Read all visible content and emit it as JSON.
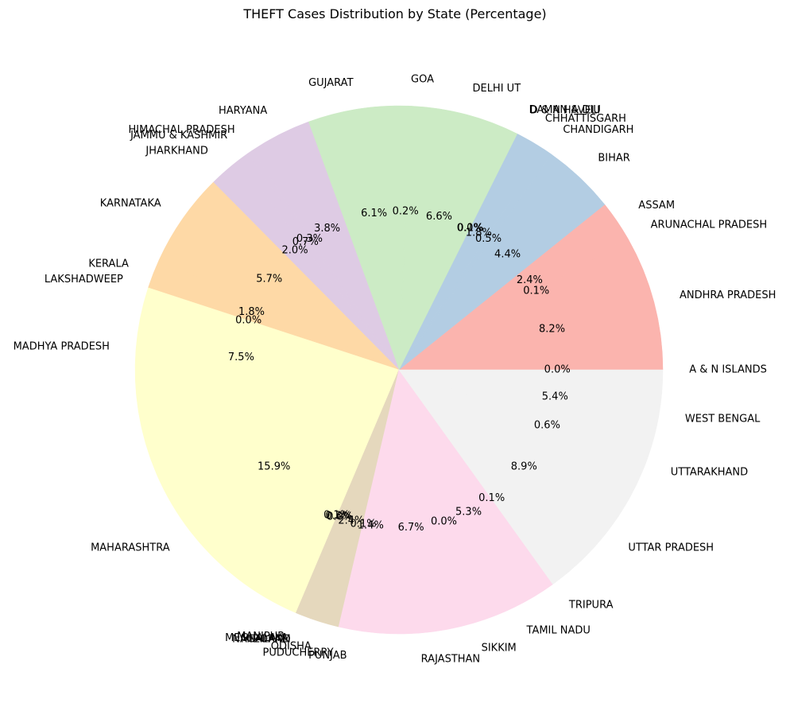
{
  "chart_data": {
    "type": "pie",
    "title": "THEFT Cases Distribution by State (Percentage)",
    "start_angle_deg": 0,
    "direction": "counterclockwise",
    "slices": [
      {
        "label": "A & N ISLANDS",
        "value": 0.0,
        "pct_text": "0.0%",
        "color": "#fbb4ae"
      },
      {
        "label": "ANDHRA PRADESH",
        "value": 8.2,
        "pct_text": "8.2%",
        "color": "#fbb4ae"
      },
      {
        "label": "ARUNACHAL PRADESH",
        "value": 0.1,
        "pct_text": "0.1%",
        "color": "#fbb4ae"
      },
      {
        "label": "ASSAM",
        "value": 2.4,
        "pct_text": "2.4%",
        "color": "#fbb4ae"
      },
      {
        "label": "BIHAR",
        "value": 4.4,
        "pct_text": "4.4%",
        "color": "#b3cde3"
      },
      {
        "label": "CHANDIGARH",
        "value": 0.5,
        "pct_text": "0.5%",
        "color": "#b3cde3"
      },
      {
        "label": "CHHATTISGARH",
        "value": 1.8,
        "pct_text": "1.8%",
        "color": "#b3cde3"
      },
      {
        "label": "D & N HAVELI",
        "value": 0.1,
        "pct_text": "0.1%",
        "color": "#b3cde3"
      },
      {
        "label": "DAMAN & DIU",
        "value": 0.0,
        "pct_text": "0.0%",
        "color": "#ccebc5"
      },
      {
        "label": "DELHI UT",
        "value": 6.6,
        "pct_text": "6.6%",
        "color": "#ccebc5"
      },
      {
        "label": "GOA",
        "value": 0.2,
        "pct_text": "0.2%",
        "color": "#ccebc5"
      },
      {
        "label": "GUJARAT",
        "value": 6.1,
        "pct_text": "6.1%",
        "color": "#ccebc5"
      },
      {
        "label": "HARYANA",
        "value": 3.8,
        "pct_text": "3.8%",
        "color": "#decbe4"
      },
      {
        "label": "HIMACHAL PRADESH",
        "value": 0.3,
        "pct_text": "0.3%",
        "color": "#decbe4"
      },
      {
        "label": "JAMMU & KASHMIR",
        "value": 0.7,
        "pct_text": "0.7%",
        "color": "#decbe4"
      },
      {
        "label": "JHARKHAND",
        "value": 2.0,
        "pct_text": "2.0%",
        "color": "#decbe4"
      },
      {
        "label": "KARNATAKA",
        "value": 5.7,
        "pct_text": "5.7%",
        "color": "#fed9a6"
      },
      {
        "label": "KERALA",
        "value": 1.8,
        "pct_text": "1.8%",
        "color": "#fed9a6"
      },
      {
        "label": "LAKSHADWEEP",
        "value": 0.0,
        "pct_text": "0.0%",
        "color": "#fed9a6"
      },
      {
        "label": "MADHYA PRADESH",
        "value": 7.5,
        "pct_text": "7.5%",
        "color": "#ffffcc"
      },
      {
        "label": "MAHARASHTRA",
        "value": 15.9,
        "pct_text": "15.9%",
        "color": "#ffffcc"
      },
      {
        "label": "MANIPUR",
        "value": 0.1,
        "pct_text": "0.1%",
        "color": "#ffffcc"
      },
      {
        "label": "MEGHALAYA",
        "value": 0.3,
        "pct_text": "0.3%",
        "color": "#e5d8bd"
      },
      {
        "label": "MIZORAM",
        "value": 0.0,
        "pct_text": "0.0%",
        "color": "#e5d8bd"
      },
      {
        "label": "NAGALAND",
        "value": 0.0,
        "pct_text": "0.0%",
        "color": "#e5d8bd"
      },
      {
        "label": "ODISHA",
        "value": 2.4,
        "pct_text": "2.4%",
        "color": "#e5d8bd"
      },
      {
        "label": "PUDUCHERRY",
        "value": 0.1,
        "pct_text": "0.1%",
        "color": "#fddaec"
      },
      {
        "label": "PUNJAB",
        "value": 1.4,
        "pct_text": "1.4%",
        "color": "#fddaec"
      },
      {
        "label": "RAJASTHAN",
        "value": 6.7,
        "pct_text": "6.7%",
        "color": "#fddaec"
      },
      {
        "label": "SIKKIM",
        "value": 0.0,
        "pct_text": "0.0%",
        "color": "#fddaec"
      },
      {
        "label": "TAMIL NADU",
        "value": 5.3,
        "pct_text": "5.3%",
        "color": "#fddaec"
      },
      {
        "label": "TRIPURA",
        "value": 0.1,
        "pct_text": "0.1%",
        "color": "#f2f2f2"
      },
      {
        "label": "UTTAR PRADESH",
        "value": 8.9,
        "pct_text": "8.9%",
        "color": "#f2f2f2"
      },
      {
        "label": "UTTARAKHAND",
        "value": 0.6,
        "pct_text": "0.6%",
        "color": "#f2f2f2"
      },
      {
        "label": "WEST BENGAL",
        "value": 5.4,
        "pct_text": "5.4%",
        "color": "#f2f2f2"
      }
    ]
  }
}
